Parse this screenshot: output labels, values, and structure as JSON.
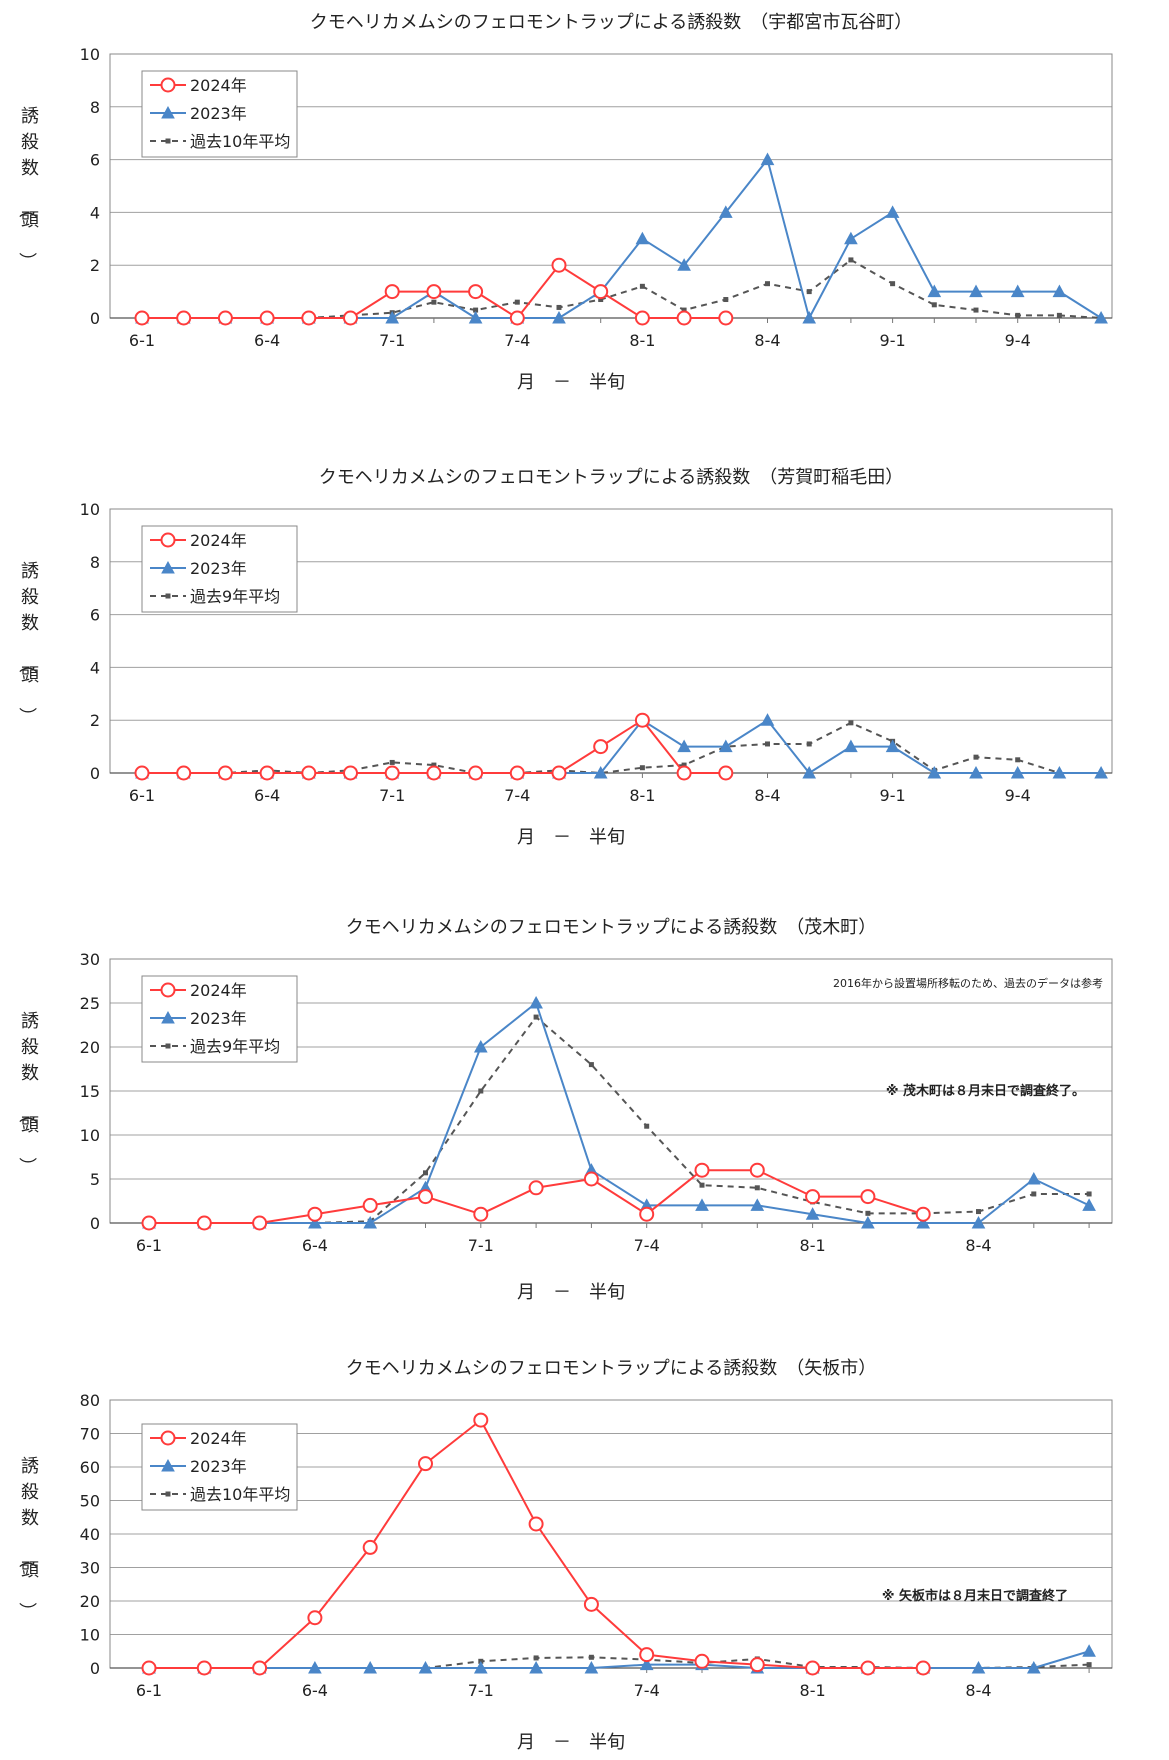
{
  "chart_data": [
    {
      "type": "line",
      "title": "クモヘリカメムシのフェロモントラップによる誘殺数　（宇都宮市瓦谷町）",
      "xlabel": "月　－　半旬",
      "ylabel": "誘殺数（頭）",
      "ylim": [
        0,
        10
      ],
      "yticks": [
        0,
        2,
        4,
        6,
        8,
        10
      ],
      "x_tick_labels": [
        "6-1",
        "",
        "",
        "6-4",
        "",
        "",
        "7-1",
        "",
        "",
        "7-4",
        "",
        "",
        "8-1",
        "",
        "",
        "8-4",
        "",
        "",
        "9-1",
        "",
        "",
        "9-4",
        "",
        ""
      ],
      "legend_position": "top-left",
      "note": "",
      "note2": "",
      "series": [
        {
          "name": "2024年",
          "color": "#ff3b3b",
          "marker": "circle",
          "dash": false,
          "values": [
            0,
            0,
            0,
            0,
            0,
            0,
            1,
            1,
            1,
            0,
            2,
            1,
            0,
            0,
            0,
            null,
            null,
            null,
            null,
            null,
            null,
            null,
            null,
            null
          ]
        },
        {
          "name": "2023年",
          "color": "#4a86c8",
          "marker": "triangle",
          "dash": false,
          "values": [
            0,
            0,
            0,
            0,
            0,
            0,
            0,
            1,
            0,
            0,
            0,
            1,
            3,
            2,
            4,
            6,
            0,
            3,
            4,
            1,
            1,
            1,
            1,
            0
          ]
        },
        {
          "name": "過去10年平均",
          "color": "#555555",
          "marker": "square",
          "dash": true,
          "values": [
            0,
            0,
            0,
            0,
            0,
            0.1,
            0.2,
            0.6,
            0.3,
            0.6,
            0.4,
            0.7,
            1.2,
            0.3,
            0.7,
            1.3,
            1.0,
            2.2,
            1.3,
            0.5,
            0.3,
            0.1,
            0.1,
            0
          ]
        }
      ]
    },
    {
      "type": "line",
      "title": "クモヘリカメムシのフェロモントラップによる誘殺数　（芳賀町稲毛田）",
      "xlabel": "月　－　半旬",
      "ylabel": "誘殺数（頭）",
      "ylim": [
        0,
        10
      ],
      "yticks": [
        0,
        2,
        4,
        6,
        8,
        10
      ],
      "x_tick_labels": [
        "6-1",
        "",
        "",
        "6-4",
        "",
        "",
        "7-1",
        "",
        "",
        "7-4",
        "",
        "",
        "8-1",
        "",
        "",
        "8-4",
        "",
        "",
        "9-1",
        "",
        "",
        "9-4",
        "",
        ""
      ],
      "legend_position": "top-left",
      "note": "",
      "note2": "",
      "series": [
        {
          "name": "2024年",
          "color": "#ff3b3b",
          "marker": "circle",
          "dash": false,
          "values": [
            0,
            0,
            0,
            0,
            0,
            0,
            0,
            0,
            0,
            0,
            0,
            1,
            2,
            0,
            0,
            null,
            null,
            null,
            null,
            null,
            null,
            null,
            null,
            null
          ]
        },
        {
          "name": "2023年",
          "color": "#4a86c8",
          "marker": "triangle",
          "dash": false,
          "values": [
            0,
            0,
            0,
            0,
            0,
            0,
            0,
            0,
            0,
            0,
            0,
            0,
            2,
            1,
            1,
            2,
            0,
            1,
            1,
            0,
            0,
            0,
            0,
            0
          ]
        },
        {
          "name": "過去9年平均",
          "color": "#555555",
          "marker": "square",
          "dash": true,
          "values": [
            0,
            0,
            0,
            0.1,
            0,
            0.1,
            0.4,
            0.3,
            0,
            0,
            0.1,
            0,
            0.2,
            0.3,
            1.0,
            1.1,
            1.1,
            1.9,
            1.2,
            0.1,
            0.6,
            0.5,
            0,
            0
          ]
        }
      ]
    },
    {
      "type": "line",
      "title": "クモヘリカメムシのフェロモントラップによる誘殺数　（茂木町）",
      "xlabel": "月　－　半旬",
      "ylabel": "誘殺数（頭）",
      "ylim": [
        0,
        30
      ],
      "yticks": [
        0,
        5,
        10,
        15,
        20,
        25,
        30
      ],
      "x_tick_labels": [
        "6-1",
        "",
        "",
        "6-4",
        "",
        "",
        "7-1",
        "",
        "",
        "7-4",
        "",
        "",
        "8-1",
        "",
        "",
        "8-4",
        "",
        ""
      ],
      "legend_position": "top-left",
      "note": "2016年から設置場所移転のため、過去のデータは参考",
      "note2": "※ 茂木町は８月末日で調査終了。",
      "series": [
        {
          "name": "2024年",
          "color": "#ff3b3b",
          "marker": "circle",
          "dash": false,
          "values": [
            0,
            0,
            0,
            1,
            2,
            3,
            1,
            4,
            5,
            1,
            6,
            6,
            3,
            3,
            1,
            null,
            null,
            null
          ]
        },
        {
          "name": "2023年",
          "color": "#4a86c8",
          "marker": "triangle",
          "dash": false,
          "values": [
            0,
            0,
            0,
            0,
            0,
            4,
            20,
            25,
            6,
            2,
            2,
            2,
            1,
            0,
            0,
            0,
            5,
            2
          ]
        },
        {
          "name": "過去9年平均",
          "color": "#555555",
          "marker": "square",
          "dash": true,
          "values": [
            0,
            0,
            0,
            0,
            0.2,
            5.7,
            15,
            23.4,
            18,
            11,
            4.3,
            4.0,
            2.4,
            1.1,
            1.1,
            1.3,
            3.3,
            3.3
          ]
        }
      ]
    },
    {
      "type": "line",
      "title": "クモヘリカメムシのフェロモントラップによる誘殺数　（矢板市）",
      "xlabel": "月　－　半旬",
      "ylabel": "誘殺数（頭）",
      "ylim": [
        0,
        80
      ],
      "yticks": [
        0,
        10,
        20,
        30,
        40,
        50,
        60,
        70,
        80
      ],
      "x_tick_labels": [
        "6-1",
        "",
        "",
        "6-4",
        "",
        "",
        "7-1",
        "",
        "",
        "7-4",
        "",
        "",
        "8-1",
        "",
        "",
        "8-4",
        "",
        ""
      ],
      "legend_position": "top-left",
      "note": "",
      "note2": "※ 矢板市は８月末日で調査終了",
      "series": [
        {
          "name": "2024年",
          "color": "#ff3b3b",
          "marker": "circle",
          "dash": false,
          "values": [
            0,
            0,
            0,
            15,
            36,
            61,
            74,
            43,
            19,
            4,
            2,
            1,
            0,
            0,
            0,
            null,
            null,
            null
          ]
        },
        {
          "name": "2023年",
          "color": "#4a86c8",
          "marker": "triangle",
          "dash": false,
          "values": [
            0,
            0,
            0,
            0,
            0,
            0,
            0,
            0,
            0,
            1,
            1,
            0,
            0,
            0,
            0,
            0,
            0,
            5
          ]
        },
        {
          "name": "過去10年平均",
          "color": "#555555",
          "marker": "square",
          "dash": true,
          "values": [
            0,
            0,
            0,
            0,
            0,
            0,
            2,
            3,
            3.2,
            2.5,
            1.5,
            2.7,
            0.3,
            0.3,
            0,
            0,
            0.3,
            1.0
          ]
        }
      ]
    }
  ]
}
